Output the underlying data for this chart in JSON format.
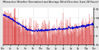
{
  "title": "Milwaukee Weather Normalized and Average Wind Direction (Last 24 Hours)",
  "bg_color": "#e8e8e8",
  "plot_bg": "#ffffff",
  "y_ticks": [
    0,
    90,
    180,
    270,
    360
  ],
  "y_labels": [
    "N",
    "E",
    "S",
    "W",
    "N"
  ],
  "ylim": [
    0,
    380
  ],
  "num_points": 288,
  "blue_line_color": "#0000cc",
  "red_bar_color": "#cc0000",
  "grid_color": "#aaaaaa",
  "title_color": "#000000",
  "tick_fontsize": 3.0
}
